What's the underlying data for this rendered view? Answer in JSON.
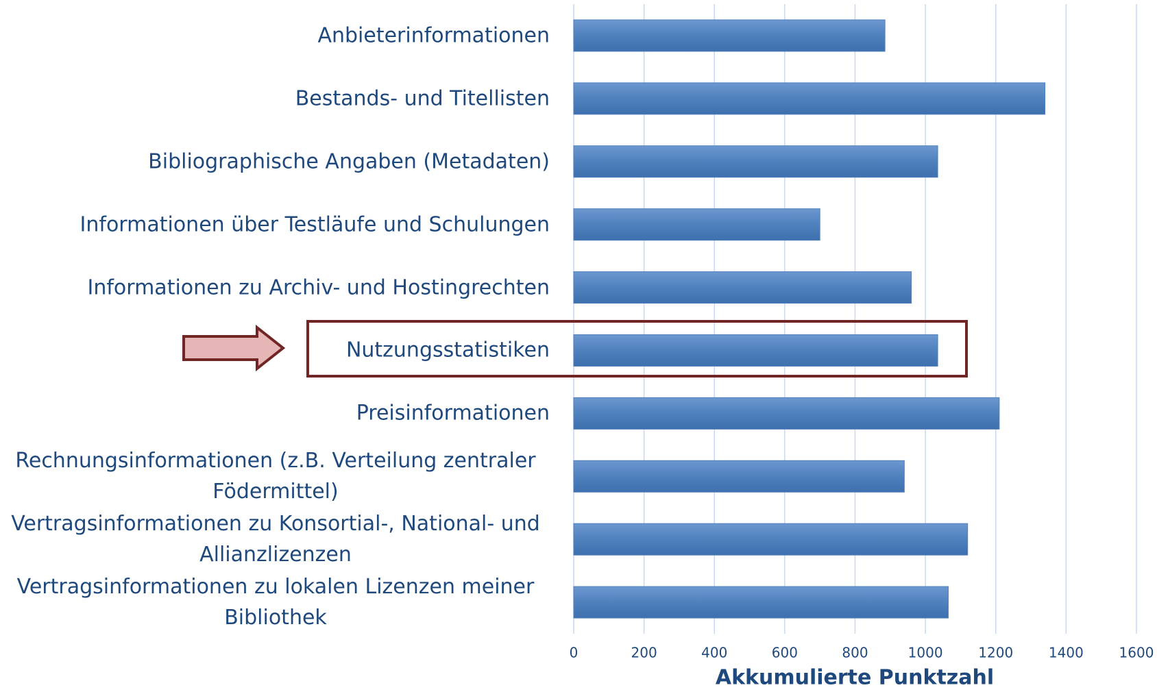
{
  "chart_data": {
    "type": "bar",
    "orientation": "horizontal",
    "categories": [
      "Anbieterinformationen",
      "Bestands- und Titellisten",
      "Bibliographische Angaben (Metadaten)",
      "Informationen über Testläufe und Schulungen",
      "Informationen zu Archiv- und Hostingrechten",
      "Nutzungsstatistiken",
      "Preisinformationen",
      "Rechnungsinformationen (z.B. Verteilung zentraler Födermittel)",
      "Vertragsinformationen zu Konsortial-, National- und Allianzlizenzen",
      "Vertragsinformationen zu lokalen Lizenzen meiner Bibliothek"
    ],
    "values": [
      885,
      1340,
      1035,
      700,
      960,
      1035,
      1210,
      940,
      1120,
      1065
    ],
    "color": "#4f81bd",
    "xlabel": "Akkumulierte Punktzahl",
    "xlim": [
      0,
      1600
    ],
    "xticks": [
      0,
      200,
      400,
      600,
      800,
      1000,
      1200,
      1400,
      1600
    ],
    "grid": true
  }
}
